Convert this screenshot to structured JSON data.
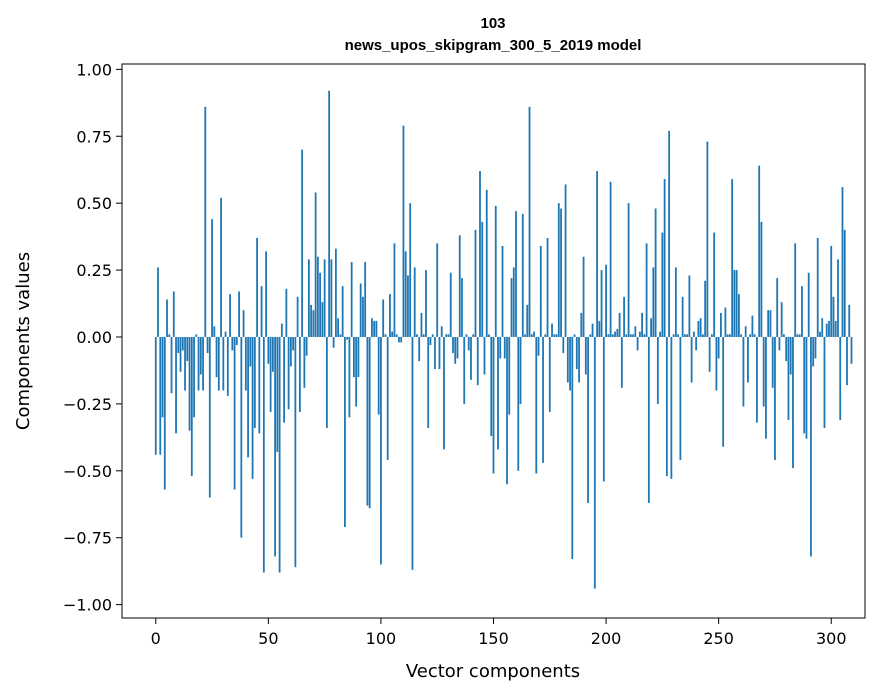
{
  "chart_data": {
    "type": "bar",
    "title": "103",
    "subtitle": "news_upos_skipgram_300_5_2019 model",
    "xlabel": "Vector components",
    "ylabel": "Components values",
    "xlim": [
      -15,
      315
    ],
    "ylim": [
      -1.05,
      1.02
    ],
    "x_ticks": [
      0,
      50,
      100,
      150,
      200,
      250,
      300
    ],
    "y_ticks": [
      1.0,
      0.75,
      0.5,
      0.25,
      0.0,
      -0.25,
      -0.5,
      -0.75,
      -1.0
    ],
    "x_tick_labels": [
      "0",
      "50",
      "100",
      "150",
      "200",
      "250",
      "300"
    ],
    "y_tick_labels": [
      "1.00",
      "0.75",
      "0.50",
      "0.25",
      "0.00",
      "−0.25",
      "−0.50",
      "−0.75",
      "−1.00"
    ],
    "grid": false,
    "bar_color": "#1f77b4",
    "values": [
      -0.44,
      0.26,
      -0.44,
      -0.3,
      -0.57,
      0.14,
      0.01,
      -0.21,
      0.17,
      -0.36,
      -0.06,
      -0.13,
      -0.05,
      -0.2,
      -0.09,
      -0.35,
      -0.52,
      -0.3,
      0.01,
      -0.2,
      -0.14,
      -0.2,
      0.86,
      -0.06,
      -0.6,
      0.44,
      0.04,
      -0.15,
      -0.2,
      0.52,
      -0.2,
      0.02,
      -0.22,
      0.16,
      -0.05,
      -0.57,
      -0.03,
      0.17,
      -0.75,
      0.1,
      -0.2,
      -0.45,
      -0.11,
      -0.53,
      -0.34,
      0.37,
      -0.36,
      0.19,
      -0.88,
      0.32,
      -0.1,
      -0.28,
      -0.13,
      -0.82,
      -0.43,
      -0.88,
      0.05,
      -0.32,
      0.18,
      -0.27,
      -0.11,
      -0.05,
      -0.86,
      0.15,
      -0.28,
      0.7,
      -0.19,
      -0.07,
      0.29,
      0.12,
      0.1,
      0.54,
      0.3,
      0.24,
      0.13,
      0.29,
      -0.34,
      0.92,
      0.29,
      -0.04,
      0.33,
      0.07,
      0.01,
      0.19,
      -0.71,
      -0.01,
      -0.3,
      0.28,
      -0.15,
      -0.26,
      -0.15,
      0.2,
      0.15,
      0.28,
      -0.63,
      -0.64,
      0.07,
      0.06,
      0.06,
      -0.29,
      -0.85,
      0.14,
      0.01,
      -0.46,
      0.16,
      0.02,
      0.35,
      0.01,
      -0.02,
      -0.02,
      0.79,
      0.32,
      0.23,
      0.5,
      -0.87,
      0.26,
      0.01,
      -0.09,
      0.09,
      0.01,
      0.25,
      -0.34,
      -0.03,
      0.01,
      -0.12,
      0.35,
      -0.12,
      0.04,
      -0.42,
      0.01,
      0.01,
      0.24,
      -0.06,
      -0.1,
      -0.08,
      0.38,
      0.22,
      -0.25,
      0.01,
      -0.05,
      -0.16,
      0.01,
      0.4,
      -0.18,
      0.62,
      0.43,
      -0.14,
      0.55,
      0.01,
      -0.37,
      -0.51,
      0.49,
      -0.42,
      -0.08,
      0.34,
      -0.08,
      -0.55,
      -0.29,
      0.22,
      0.26,
      0.47,
      -0.5,
      -0.25,
      0.46,
      0.01,
      0.12,
      0.86,
      0.01,
      0.02,
      -0.51,
      -0.07,
      0.34,
      -0.47,
      0.01,
      0.37,
      -0.28,
      0.05,
      0.01,
      0.01,
      0.5,
      0.48,
      -0.06,
      0.57,
      -0.17,
      -0.2,
      -0.83,
      0.01,
      -0.12,
      -0.17,
      0.09,
      0.3,
      -0.14,
      -0.62,
      0.01,
      0.05,
      -0.94,
      0.62,
      0.06,
      0.25,
      -0.54,
      0.27,
      0.01,
      0.58,
      0.01,
      0.02,
      0.03,
      0.09,
      -0.19,
      0.15,
      0.01,
      0.5,
      0.01,
      0.01,
      0.04,
      -0.05,
      0.02,
      0.09,
      0.01,
      0.35,
      -0.62,
      0.07,
      0.26,
      0.48,
      -0.25,
      0.02,
      0.39,
      0.59,
      -0.52,
      0.77,
      -0.53,
      0.01,
      0.26,
      0.01,
      -0.46,
      0.15,
      0.01,
      0.01,
      0.23,
      -0.17,
      0.02,
      -0.05,
      0.06,
      0.07,
      0.01,
      0.21,
      0.73,
      -0.13,
      0.01,
      0.39,
      -0.2,
      -0.08,
      0.09,
      -0.41,
      0.11,
      0.01,
      0.01,
      0.59,
      0.25,
      0.25,
      0.16,
      0.01,
      -0.26,
      0.04,
      -0.17,
      0.01,
      0.08,
      0.01,
      -0.32,
      0.64,
      0.43,
      -0.26,
      -0.38,
      0.1,
      0.1,
      -0.19,
      -0.46,
      0.22,
      -0.05,
      0.13,
      0.01,
      -0.09,
      -0.31,
      -0.14,
      -0.49,
      0.35,
      0.01,
      0.01,
      0.19,
      -0.36,
      -0.38,
      0.24,
      -0.82,
      -0.11,
      -0.08,
      0.37,
      0.02,
      0.07,
      -0.34,
      0.05,
      0.06,
      0.34,
      0.15,
      0.06,
      0.29,
      -0.31,
      0.56,
      0.4,
      -0.18,
      0.12,
      -0.1
    ]
  }
}
